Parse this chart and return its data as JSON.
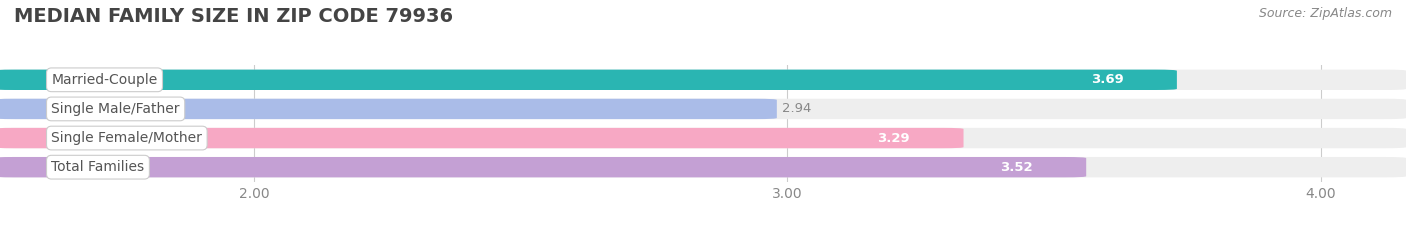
{
  "title": "Median Family Size in Zip Code 79936",
  "title_upper": "MEDIAN FAMILY SIZE IN ZIP CODE 79936",
  "source": "Source: ZipAtlas.com",
  "categories": [
    "Married-Couple",
    "Single Male/Father",
    "Single Female/Mother",
    "Total Families"
  ],
  "values": [
    3.69,
    2.94,
    3.29,
    3.52
  ],
  "bar_colors": [
    "#2ab5b2",
    "#aabce8",
    "#f7a8c4",
    "#c4a0d4"
  ],
  "bar_bg_color": "#eeeeee",
  "label_bg_color": "#ffffff",
  "xmin": 1.55,
  "xmax": 4.12,
  "xlim_start": 0.0,
  "xticks": [
    2.0,
    3.0,
    4.0
  ],
  "xtick_labels": [
    "2.00",
    "3.00",
    "4.00"
  ],
  "background_color": "#ffffff",
  "bar_height": 0.62,
  "bar_gap": 0.38,
  "title_fontsize": 14,
  "label_fontsize": 10,
  "value_fontsize": 9.5,
  "source_fontsize": 9,
  "value_inside_color": "#ffffff",
  "value_outside_color": "#888888",
  "label_text_color": "#555555"
}
